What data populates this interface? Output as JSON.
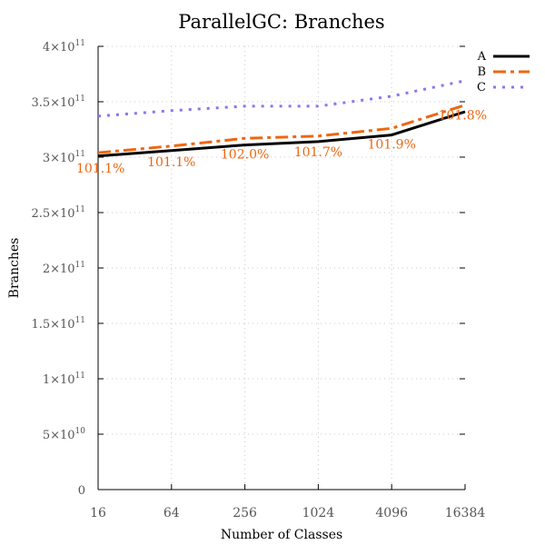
{
  "chart_data": {
    "type": "line",
    "title": "ParallelGC: Branches",
    "xlabel": "Number of Classes",
    "ylabel": "Branches",
    "x_scale": "log2",
    "categories": [
      "16",
      "64",
      "256",
      "1024",
      "4096",
      "16384"
    ],
    "x_values": [
      16,
      64,
      256,
      1024,
      4096,
      16384
    ],
    "ylim": [
      0,
      400000000000
    ],
    "y_ticks": [
      {
        "value": 0,
        "mantissa": "0",
        "exponent": ""
      },
      {
        "value": 50000000000,
        "mantissa": "5×10",
        "exponent": "10"
      },
      {
        "value": 100000000000,
        "mantissa": "1×10",
        "exponent": "11"
      },
      {
        "value": 150000000000,
        "mantissa": "1.5×10",
        "exponent": "11"
      },
      {
        "value": 200000000000,
        "mantissa": "2×10",
        "exponent": "11"
      },
      {
        "value": 250000000000,
        "mantissa": "2.5×10",
        "exponent": "11"
      },
      {
        "value": 300000000000,
        "mantissa": "3×10",
        "exponent": "11"
      },
      {
        "value": 350000000000,
        "mantissa": "3.5×10",
        "exponent": "11"
      },
      {
        "value": 400000000000,
        "mantissa": "4×10",
        "exponent": "11"
      }
    ],
    "grid": true,
    "legend_position": "top-right",
    "series": [
      {
        "name": "A",
        "color": "#000000",
        "style": "solid",
        "values": [
          301000000000,
          306000000000,
          311000000000,
          314000000000,
          320000000000,
          341000000000
        ]
      },
      {
        "name": "B",
        "color": "#ee6611",
        "style": "dashdot",
        "values": [
          304000000000,
          310000000000,
          317000000000,
          319000000000,
          326000000000,
          347000000000
        ]
      },
      {
        "name": "C",
        "color": "#8877ee",
        "style": "dotted",
        "values": [
          337000000000,
          342000000000,
          346000000000,
          346000000000,
          355000000000,
          369000000000
        ]
      }
    ],
    "annotations": [
      {
        "x": 16,
        "text": "101.1%"
      },
      {
        "x": 64,
        "text": "101.1%"
      },
      {
        "x": 256,
        "text": "102.0%"
      },
      {
        "x": 1024,
        "text": "101.7%"
      },
      {
        "x": 4096,
        "text": "101.9%"
      },
      {
        "x": 16384,
        "text": "101.8%"
      }
    ],
    "annotation_color": "#ee6611"
  }
}
